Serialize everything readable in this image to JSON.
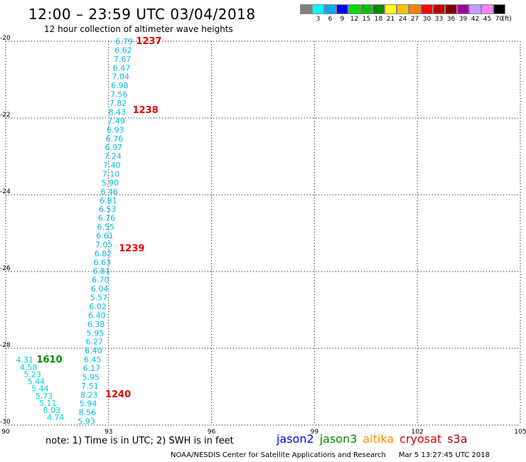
{
  "header": {
    "title": "12:00 – 23:59 UTC 03/04/2018",
    "subtitle": "12 hour collection of altimeter wave heights"
  },
  "legend": {
    "unit": "(ft)",
    "bins": [
      {
        "label": "",
        "color": "#808080"
      },
      {
        "label": "3",
        "color": "#00ffff"
      },
      {
        "label": "6",
        "color": "#00a8f0"
      },
      {
        "label": "9",
        "color": "#0000ff"
      },
      {
        "label": "12",
        "color": "#00e000"
      },
      {
        "label": "15",
        "color": "#00c000"
      },
      {
        "label": "18",
        "color": "#008800"
      },
      {
        "label": "21",
        "color": "#ffff00"
      },
      {
        "label": "24",
        "color": "#ffc000"
      },
      {
        "label": "27",
        "color": "#ff8000"
      },
      {
        "label": "30",
        "color": "#ff0000"
      },
      {
        "label": "33",
        "color": "#c00000"
      },
      {
        "label": "36",
        "color": "#800000"
      },
      {
        "label": "39",
        "color": "#a000a0"
      },
      {
        "label": "42",
        "color": "#c0a0ff"
      },
      {
        "label": "45",
        "color": "#ff80ff"
      },
      {
        "label": "70",
        "color": "#000000"
      }
    ]
  },
  "chart_data": {
    "type": "scatter",
    "xlim": [
      90,
      105
    ],
    "ylim": [
      -30,
      -20
    ],
    "x_ticks": [
      "90",
      "93",
      "96",
      "99",
      "102",
      "105"
    ],
    "y_ticks": [
      "-20",
      "-22",
      "-24",
      "-26",
      "-28",
      "-30"
    ],
    "tracks": [
      {
        "color": "#00b8e8",
        "lon_start": 93.2,
        "lon_end": 92.1,
        "lat_start": -20.0,
        "lat_end": -29.9,
        "values": [
          "6.79",
          "6.62",
          "7.67",
          "6.47",
          "7.04",
          "6.98",
          "7.56",
          "7.82",
          "8.43",
          "7.49",
          "6.93",
          "6.76",
          "6.97",
          "7.24",
          "7.40",
          "7.10",
          "5.90",
          "6.46",
          "6.81",
          "6.53",
          "6.76",
          "6.55",
          "6.61",
          "7.05",
          "6.82",
          "6.63",
          "6.81",
          "6.70",
          "6.04",
          "5.57",
          "6.02",
          "6.40",
          "6.38",
          "5.95",
          "6.27",
          "6.40",
          "6.45",
          "6.17",
          "5.95",
          "7.51",
          "8.23",
          "5.94",
          "8.56",
          "5.93"
        ]
      },
      {
        "color": "#00d0d0",
        "lon_start": 90.3,
        "lon_end": 91.2,
        "lat_start": -28.3,
        "lat_end": -29.8,
        "values": [
          "4.31",
          "4.58",
          "5.23",
          "5.44",
          "5.44",
          "5.73",
          "5.11",
          "8.03",
          "4.74"
        ]
      }
    ],
    "time_labels": [
      {
        "text": "1237",
        "lon": 93.8,
        "lat": -20.0,
        "color": "#e00000"
      },
      {
        "text": "1238",
        "lon": 93.7,
        "lat": -21.8,
        "color": "#e00000"
      },
      {
        "text": "1239",
        "lon": 93.3,
        "lat": -25.4,
        "color": "#e00000"
      },
      {
        "text": "1240",
        "lon": 92.9,
        "lat": -29.2,
        "color": "#e00000"
      },
      {
        "text": "1610",
        "lon": 90.9,
        "lat": -28.3,
        "color": "#008800"
      }
    ]
  },
  "footer": {
    "note": "note: 1) Time is in UTC; 2) SWH is in feet",
    "satellites": [
      {
        "name": "jason2",
        "color": "#0000ff"
      },
      {
        "name": "jason3",
        "color": "#008800"
      },
      {
        "name": "altika",
        "color": "#ff8c00"
      },
      {
        "name": "cryosat",
        "color": "#e00000"
      },
      {
        "name": "s3a",
        "color": "#a00000"
      }
    ],
    "credit": "NOAA/NESDIS Center for Satellite Applications and Research",
    "timestamp": "Mar  5 13:27:45 UTC 2018"
  }
}
